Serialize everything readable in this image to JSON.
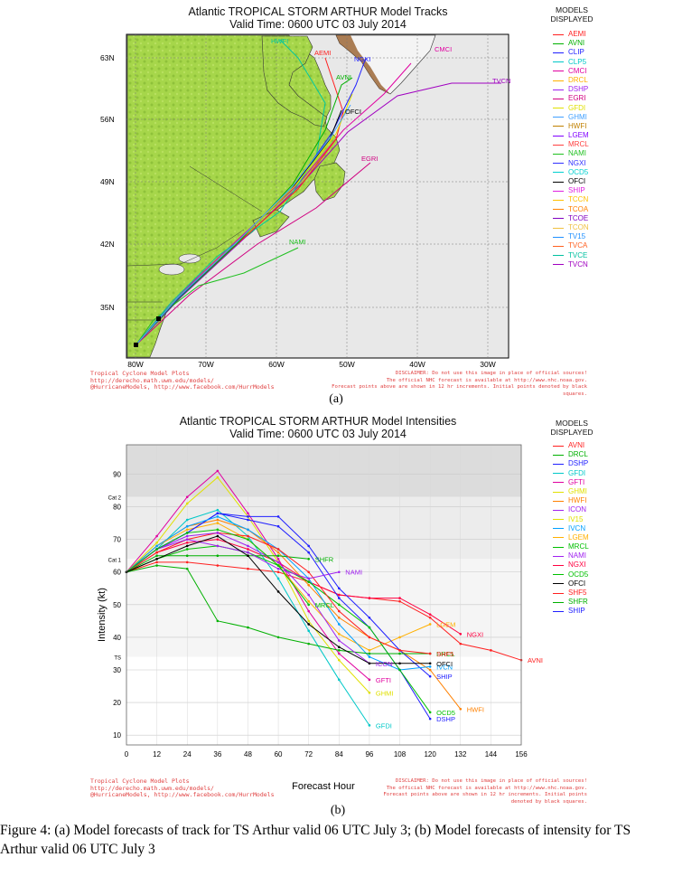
{
  "track": {
    "title": "Atlantic TROPICAL STORM ARTHUR Model Tracks",
    "valid_time": "Valid Time: 0600 UTC 03 July 2014",
    "models_heading": [
      "MODELS",
      "DISPLAYED"
    ],
    "legend": [
      {
        "name": "AEMI",
        "color": "#ff2020"
      },
      {
        "name": "AVNI",
        "color": "#00b000"
      },
      {
        "name": "CLIP",
        "color": "#2020ff"
      },
      {
        "name": "CLP5",
        "color": "#00c8c8"
      },
      {
        "name": "CMCI",
        "color": "#e000a0"
      },
      {
        "name": "DRCL",
        "color": "#ffb000"
      },
      {
        "name": "DSHP",
        "color": "#a020f0"
      },
      {
        "name": "EGRI",
        "color": "#d00080"
      },
      {
        "name": "GFDI",
        "color": "#e0e000"
      },
      {
        "name": "GHMI",
        "color": "#40a0ff"
      },
      {
        "name": "HWFI",
        "color": "#c08000"
      },
      {
        "name": "LGEM",
        "color": "#8000ff"
      },
      {
        "name": "MRCL",
        "color": "#ff4040"
      },
      {
        "name": "NAMI",
        "color": "#20c020"
      },
      {
        "name": "NGXI",
        "color": "#3030ff"
      },
      {
        "name": "OCD5",
        "color": "#00d0d0"
      },
      {
        "name": "OFCI",
        "color": "#000000"
      },
      {
        "name": "SHIP",
        "color": "#e020e0"
      },
      {
        "name": "TCCN",
        "color": "#ffc000"
      },
      {
        "name": "TCOA",
        "color": "#ff8000"
      },
      {
        "name": "TCOE",
        "color": "#8000c0"
      },
      {
        "name": "TCON",
        "color": "#f0c040"
      },
      {
        "name": "TV15",
        "color": "#2090ff"
      },
      {
        "name": "TVCA",
        "color": "#ff6020"
      },
      {
        "name": "TVCE",
        "color": "#00c0a0"
      },
      {
        "name": "TVCN",
        "color": "#a000c0"
      }
    ],
    "lat_labels": [
      "63N",
      "56N",
      "49N",
      "42N",
      "35N"
    ],
    "lon_labels": [
      "80W",
      "70W",
      "60W",
      "50W",
      "40W",
      "30W"
    ],
    "map_labels": {
      "HWFI": "HWFI",
      "AEMI": "AEMI",
      "NGXI": "NGXI",
      "CMCI": "CMCI",
      "TVCN": "TVCN",
      "AVNI": "AVNI",
      "OFCI": "OFCI",
      "EGRI": "EGRI",
      "NAMI": "NAMI"
    },
    "credit_left": [
      "Tropical Cyclone Model Plots",
      "http://derecho.math.uwm.edu/models/",
      "@HurricaneModels, http://www.facebook.com/HurrModels"
    ],
    "credit_right": [
      "DISCLAIMER: Do not use this image in place of official sources!",
      "The official NHC forecast is available at http://www.nhc.noaa.gov.",
      "Forecast points above are shown in 12 hr increments. Initial points denoted by black squares."
    ],
    "sublabel": "(a)"
  },
  "intensity": {
    "title": "Atlantic TROPICAL STORM ARTHUR Model Intensities",
    "valid_time": "Valid Time: 0600 UTC 03 July 2014",
    "models_heading": [
      "MODELS",
      "DISPLAYED"
    ],
    "legend": [
      {
        "name": "AVNI",
        "color": "#ff2020"
      },
      {
        "name": "DRCL",
        "color": "#00b000"
      },
      {
        "name": "DSHP",
        "color": "#2020ff"
      },
      {
        "name": "GFDI",
        "color": "#00c8c8"
      },
      {
        "name": "GFTI",
        "color": "#e000a0"
      },
      {
        "name": "GHMI",
        "color": "#e0e000"
      },
      {
        "name": "HWFI",
        "color": "#ff8000"
      },
      {
        "name": "ICON",
        "color": "#a020f0"
      },
      {
        "name": "IV15",
        "color": "#e0e000"
      },
      {
        "name": "IVCN",
        "color": "#00a0ff"
      },
      {
        "name": "LGEM",
        "color": "#ffb000"
      },
      {
        "name": "MRCL",
        "color": "#00c000"
      },
      {
        "name": "NAMI",
        "color": "#a020f0"
      },
      {
        "name": "NGXI",
        "color": "#ff0040"
      },
      {
        "name": "OCD5",
        "color": "#00c000"
      },
      {
        "name": "OFCI",
        "color": "#000000"
      },
      {
        "name": "SHF5",
        "color": "#ff2020"
      },
      {
        "name": "SHFR",
        "color": "#00b000"
      },
      {
        "name": "SHIP",
        "color": "#2020ff"
      }
    ],
    "credit_left": [
      "Tropical Cyclone Model Plots",
      "http://derecho.math.uwm.edu/models/",
      "@HurricaneModels, http://www.facebook.com/HurrModels"
    ],
    "credit_right": [
      "DISCLAIMER: Do not use this image in place of official sources!",
      "The official NHC forecast is available at http://www.nhc.noaa.gov.",
      "Forecast points above are shown in 12 hr increments. Initial points denoted by black squares."
    ],
    "sublabel": "(b)"
  },
  "chart_data": {
    "type": "line",
    "title": "Atlantic TROPICAL STORM ARTHUR Model Intensities",
    "subtitle": "Valid Time: 0600 UTC 03 July 2014",
    "xlabel": "Forecast Hour",
    "ylabel": "Intensity (kt)",
    "xlim": [
      0,
      156
    ],
    "ylim": [
      7,
      99
    ],
    "x_ticks": [
      0,
      12,
      24,
      36,
      48,
      60,
      72,
      84,
      96,
      108,
      120,
      132,
      144,
      156
    ],
    "y_ticks": [
      10,
      20,
      30,
      40,
      50,
      60,
      70,
      80,
      90
    ],
    "category_lines": [
      {
        "label": "Cat 2",
        "value": 83
      },
      {
        "label": "Cat 1",
        "value": 64
      },
      {
        "label": "TS",
        "value": 34
      }
    ],
    "series": [
      {
        "name": "AVNI",
        "color": "#ff2020",
        "x": [
          0,
          12,
          24,
          36,
          48,
          60,
          72,
          84,
          96,
          108,
          120,
          132,
          144,
          156
        ],
        "y": [
          60,
          63,
          63,
          62,
          61,
          60,
          57,
          53,
          52,
          51,
          46,
          38,
          36,
          33
        ]
      },
      {
        "name": "NGXI",
        "color": "#ff0040",
        "x": [
          0,
          12,
          24,
          36,
          48,
          60,
          72,
          84,
          96,
          108,
          120,
          132
        ],
        "y": [
          60,
          66,
          69,
          70,
          67,
          63,
          57,
          53,
          52,
          52,
          47,
          41
        ]
      },
      {
        "name": "GFTI",
        "color": "#e000a0",
        "x": [
          0,
          12,
          24,
          36,
          48,
          60,
          72,
          84,
          96
        ],
        "y": [
          60,
          71,
          83,
          91,
          78,
          64,
          48,
          35,
          27
        ]
      },
      {
        "name": "GHMI",
        "color": "#e0e000",
        "x": [
          0,
          12,
          24,
          36,
          48,
          60,
          72,
          84,
          96
        ],
        "y": [
          60,
          69,
          81,
          89,
          77,
          63,
          45,
          33,
          23
        ]
      },
      {
        "name": "GFDI",
        "color": "#00c8c8",
        "x": [
          0,
          12,
          24,
          36,
          48,
          60,
          72,
          84,
          96
        ],
        "y": [
          60,
          67,
          76,
          79,
          71,
          58,
          42,
          27,
          13
        ]
      },
      {
        "name": "HWFI",
        "color": "#ff8000",
        "x": [
          0,
          12,
          24,
          36,
          48,
          60,
          72,
          84,
          96,
          108,
          120,
          132
        ],
        "y": [
          60,
          68,
          74,
          76,
          73,
          66,
          56,
          46,
          40,
          36,
          30,
          18
        ]
      },
      {
        "name": "LGEM",
        "color": "#ffb000",
        "x": [
          0,
          12,
          24,
          36,
          48,
          60,
          72,
          84,
          96,
          108,
          120
        ],
        "y": [
          60,
          68,
          73,
          75,
          70,
          62,
          51,
          41,
          36,
          40,
          44
        ]
      },
      {
        "name": "SHIP",
        "color": "#2020ff",
        "x": [
          0,
          12,
          24,
          36,
          48,
          60,
          72,
          84,
          96,
          108,
          120
        ],
        "y": [
          60,
          67,
          72,
          78,
          77,
          77,
          68,
          55,
          46,
          36,
          28
        ]
      },
      {
        "name": "DSHP",
        "color": "#2020ff",
        "x": [
          0,
          12,
          24,
          36,
          48,
          60,
          72,
          84,
          96,
          108,
          120
        ],
        "y": [
          60,
          67,
          72,
          78,
          76,
          74,
          66,
          52,
          43,
          30,
          15
        ]
      },
      {
        "name": "IVCN",
        "color": "#00a0ff",
        "x": [
          0,
          12,
          24,
          36,
          48,
          60,
          72,
          84,
          96,
          108,
          120
        ],
        "y": [
          60,
          68,
          74,
          77,
          73,
          67,
          58,
          44,
          34,
          30,
          31
        ]
      },
      {
        "name": "OCD5",
        "color": "#00c000",
        "x": [
          0,
          12,
          24,
          36,
          48,
          60,
          72,
          84,
          96,
          108,
          120
        ],
        "y": [
          60,
          64,
          67,
          68,
          66,
          62,
          57,
          50,
          43,
          30,
          17
        ]
      },
      {
        "name": "DRCL",
        "color": "#00b000",
        "x": [
          0,
          12,
          24,
          36,
          48,
          60,
          72,
          84,
          96,
          108,
          120
        ],
        "y": [
          60,
          62,
          61,
          45,
          43,
          40,
          38,
          36,
          35,
          35,
          35
        ]
      },
      {
        "name": "SHFR",
        "color": "#00b000",
        "x": [
          0,
          12,
          24,
          36,
          48,
          60,
          72
        ],
        "y": [
          60,
          65,
          65,
          65,
          65,
          65,
          64
        ]
      },
      {
        "name": "SHF5",
        "color": "#ff2020",
        "x": [
          0,
          12,
          24,
          36,
          48,
          60,
          72,
          84,
          96,
          108,
          120
        ],
        "y": [
          60,
          66,
          70,
          72,
          71,
          67,
          60,
          48,
          40,
          36,
          35
        ]
      },
      {
        "name": "NAMI",
        "color": "#a020f0",
        "x": [
          0,
          12,
          24,
          36,
          48,
          60,
          72,
          84
        ],
        "y": [
          60,
          67,
          70,
          68,
          66,
          61,
          58,
          60
        ]
      },
      {
        "name": "ICON",
        "color": "#a020f0",
        "x": [
          0,
          12,
          24,
          36,
          48,
          60,
          72,
          84,
          96
        ],
        "y": [
          60,
          67,
          71,
          72,
          68,
          63,
          53,
          39,
          32
        ]
      },
      {
        "name": "MRCL",
        "color": "#00c000",
        "x": [
          0,
          12,
          24,
          36,
          48,
          60,
          72
        ],
        "y": [
          60,
          67,
          72,
          73,
          70,
          62,
          50
        ]
      },
      {
        "name": "OFCI",
        "color": "#000000",
        "x": [
          0,
          12,
          24,
          36,
          48,
          60,
          72,
          84,
          96,
          108,
          120
        ],
        "y": [
          60,
          64,
          68,
          71,
          65,
          54,
          44,
          37,
          32,
          32,
          32
        ]
      }
    ],
    "end_labels": [
      "AVNI",
      "NGXI",
      "LGEM",
      "SHF5",
      "DRCL",
      "OFCI",
      "IVCN",
      "SHIP",
      "GFTI",
      "GHMI",
      "HWFI",
      "OCD5",
      "DSHP",
      "GFDI",
      "SHFR",
      "MRCL",
      "NAMI",
      "ICON"
    ]
  },
  "caption": "Figure 4: (a) Model forecasts of track for TS Arthur valid 06 UTC July 3; (b) Model forecasts of intensity for TS Arthur valid 06 UTC July 3"
}
